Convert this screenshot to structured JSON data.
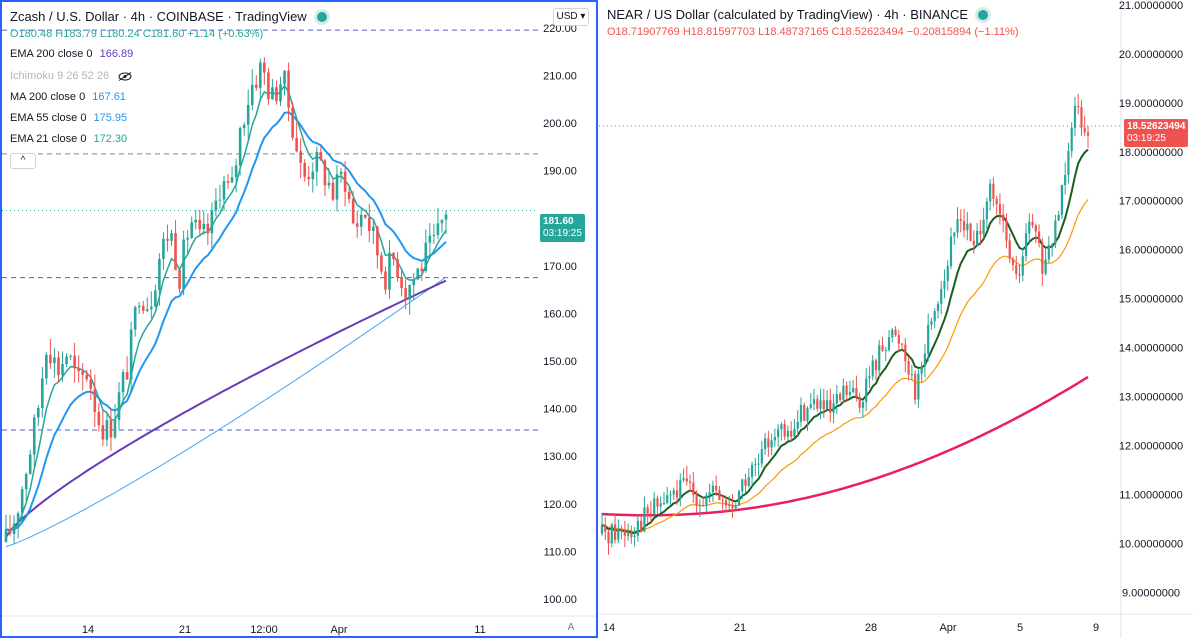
{
  "left": {
    "title": "Zcash / U.S. Dollar · 4h · COINBASE · TradingView",
    "currency_button": "USD",
    "ohlc": {
      "o": "O180.48",
      "h": "H183.79",
      "l": "L180.24",
      "c": "C181.60",
      "chg": "+1.14 (+0.63%)"
    },
    "indicators": [
      {
        "label": "EMA 200 close 0",
        "value": "166.89",
        "color": "#673ab7"
      },
      {
        "label": "Ichimoku 9 26 52 26",
        "value": "",
        "color": "#b2b5be"
      },
      {
        "label": "MA 200 close 0",
        "value": "167.61",
        "color": "#2196f3"
      },
      {
        "label": "EMA 55 close 0",
        "value": "175.95",
        "color": "#2196f3"
      },
      {
        "label": "EMA 21 close 0",
        "value": "172.30",
        "color": "#26a69a"
      }
    ],
    "collapse_label": "^",
    "price_tag": {
      "value": "181.60",
      "timer": "03:19:25",
      "color": "#26a69a"
    },
    "auto_label": "A",
    "colors": {
      "up": "#26a69a",
      "down": "#ef5350",
      "ema200": "#673ab7",
      "ma200": "#42a5f5",
      "ema55": "#2196f3",
      "ema21": "#26a69a",
      "hline_blue": "#5b5bd6",
      "hline_green": "#4caf50"
    }
  },
  "right": {
    "title": "NEAR / US Dollar (calculated by TradingView) · 4h · BINANCE",
    "ohlc": {
      "o": "O18.71907769",
      "h": "H18.81597703",
      "l": "L18.48737165",
      "c": "C18.52623494",
      "chg": "−0.20815894 (−1.11%)"
    },
    "price_tag": {
      "value": "18.52623494",
      "timer": "03:19:25",
      "color": "#ef5350"
    },
    "colors": {
      "up": "#26a69a",
      "down": "#ef5350",
      "ma_red": "#e91e63",
      "ma_orange": "#ff9800",
      "ma_green": "#1b5e20"
    }
  },
  "chart_data": [
    {
      "type": "candlestick",
      "title": "Zcash / U.S. Dollar · 4h · COINBASE",
      "x_ticks": [
        "14",
        "21",
        "12:00",
        "Apr",
        "11"
      ],
      "y_ticks": [
        100,
        110,
        120,
        130,
        140,
        150,
        160,
        170,
        180,
        190,
        200,
        210,
        220
      ],
      "ylim": [
        96,
        225
      ],
      "horizontal_lines": [
        219.5,
        193.5,
        167.5,
        135.5
      ],
      "close_path": [
        [
          0,
          112
        ],
        [
          2,
          118
        ],
        [
          4,
          128
        ],
        [
          6,
          138
        ],
        [
          8,
          155
        ],
        [
          10,
          148
        ],
        [
          12,
          152
        ],
        [
          14,
          145
        ],
        [
          16,
          148
        ],
        [
          18,
          138
        ],
        [
          20,
          135
        ],
        [
          22,
          142
        ],
        [
          24,
          150
        ],
        [
          26,
          165
        ],
        [
          28,
          162
        ],
        [
          30,
          172
        ],
        [
          32,
          178
        ],
        [
          34,
          168
        ],
        [
          36,
          180
        ],
        [
          38,
          175
        ],
        [
          40,
          178
        ],
        [
          42,
          188
        ],
        [
          44,
          185
        ],
        [
          46,
          200
        ],
        [
          48,
          208
        ],
        [
          50,
          212
        ],
        [
          52,
          205
        ],
        [
          54,
          210
        ],
        [
          56,
          200
        ],
        [
          58,
          188
        ],
        [
          60,
          192
        ],
        [
          62,
          190
        ],
        [
          64,
          185
        ],
        [
          66,
          190
        ],
        [
          68,
          178
        ],
        [
          70,
          182
        ],
        [
          72,
          175
        ],
        [
          74,
          168
        ],
        [
          76,
          172
        ],
        [
          78,
          165
        ],
        [
          80,
          168
        ],
        [
          82,
          172
        ],
        [
          84,
          175
        ],
        [
          86,
          182
        ]
      ],
      "series": [
        {
          "name": "EMA 200 close 0",
          "last": 166.89
        },
        {
          "name": "MA 200 close 0",
          "last": 167.61
        },
        {
          "name": "EMA 55 close 0",
          "last": 175.95
        },
        {
          "name": "EMA 21 close 0",
          "last": 172.3
        }
      ],
      "last_price": 181.6
    },
    {
      "type": "candlestick",
      "title": "NEAR / US Dollar (calculated by TradingView) · 4h · BINANCE",
      "x_ticks": [
        "14",
        "21",
        "28",
        "Apr",
        "5",
        "9"
      ],
      "y_ticks": [
        9,
        10,
        11,
        12,
        13,
        14,
        15,
        16,
        17,
        18,
        19,
        20,
        21
      ],
      "ylim": [
        8.6,
        21.1
      ],
      "close_path": [
        [
          0,
          10.2
        ],
        [
          4,
          10.3
        ],
        [
          8,
          10.8
        ],
        [
          10,
          11.0
        ],
        [
          12,
          11.2
        ],
        [
          14,
          10.9
        ],
        [
          16,
          11.0
        ],
        [
          18,
          10.7
        ],
        [
          20,
          11.3
        ],
        [
          22,
          11.6
        ],
        [
          24,
          12.4
        ],
        [
          26,
          12.1
        ],
        [
          28,
          12.7
        ],
        [
          30,
          12.9
        ],
        [
          32,
          12.6
        ],
        [
          34,
          13.1
        ],
        [
          36,
          12.9
        ],
        [
          38,
          13.6
        ],
        [
          40,
          14.3
        ],
        [
          42,
          14.1
        ],
        [
          44,
          13.1
        ],
        [
          46,
          14.6
        ],
        [
          48,
          15.5
        ],
        [
          50,
          16.8
        ],
        [
          52,
          16.0
        ],
        [
          54,
          17.2
        ],
        [
          56,
          16.5
        ],
        [
          58,
          15.3
        ],
        [
          60,
          16.6
        ],
        [
          62,
          15.5
        ],
        [
          64,
          16.9
        ],
        [
          66,
          19.0
        ],
        [
          68,
          18.5
        ]
      ],
      "series": [
        {
          "name": "red moving average",
          "start": 10.6,
          "end": 13.4
        },
        {
          "name": "orange moving average",
          "start": 10.4,
          "end": 15.8
        },
        {
          "name": "green moving average",
          "start": 10.3,
          "end": 16.7
        }
      ],
      "last_price": 18.52623494
    }
  ]
}
